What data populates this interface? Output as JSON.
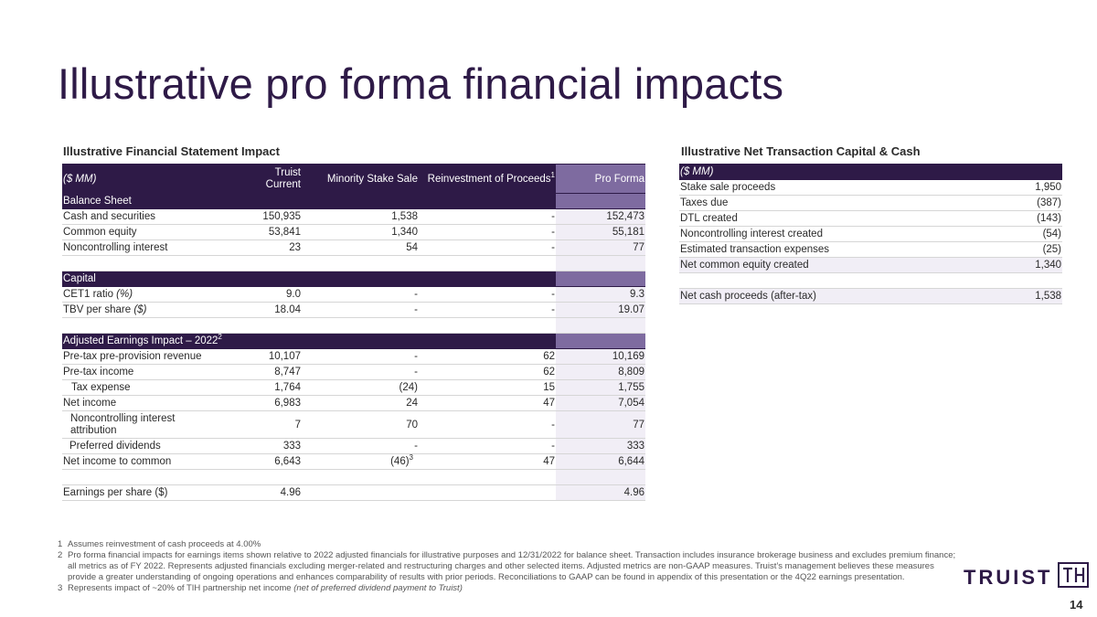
{
  "title": "Illustrative pro forma financial impacts",
  "left": {
    "heading": "Illustrative Financial Statement Impact",
    "columns": {
      "units": "($ MM)",
      "truist_current_line1": "Truist",
      "truist_current_line2": "Current",
      "minority": "Minority Stake Sale",
      "reinvestment": "Reinvestment of Proceeds",
      "reinvestment_sup": "1",
      "pro_forma": "Pro Forma"
    },
    "balance_sheet": {
      "label": "Balance Sheet",
      "rows": [
        {
          "label": "Cash and securities",
          "current": "150,935",
          "minority": "1,538",
          "reinvest": "-",
          "pro_forma": "152,473"
        },
        {
          "label": "Common equity",
          "current": "53,841",
          "minority": "1,340",
          "reinvest": "-",
          "pro_forma": "55,181"
        },
        {
          "label": "Noncontrolling interest",
          "current": "23",
          "minority": "54",
          "reinvest": "-",
          "pro_forma": "77"
        }
      ]
    },
    "capital": {
      "label": "Capital",
      "cet1_label": "CET1 ratio ",
      "cet1_unit": "(%)",
      "cet1": {
        "current": "9.0",
        "minority": "-",
        "reinvest": "-",
        "pro_forma": "9.3"
      },
      "tbv_label": "TBV per share ",
      "tbv_unit": "($)",
      "tbv": {
        "current": "18.04",
        "minority": "-",
        "reinvest": "-",
        "pro_forma": "19.07"
      }
    },
    "earnings": {
      "label": "Adjusted Earnings Impact – 2022",
      "label_sup": "2",
      "rows": [
        {
          "label": "Pre-tax pre-provision revenue",
          "current": "10,107",
          "minority": "-",
          "reinvest": "62",
          "pro_forma": "10,169"
        },
        {
          "label": "Pre-tax income",
          "current": "8,747",
          "minority": "-",
          "reinvest": "62",
          "pro_forma": "8,809"
        },
        {
          "label": "Tax expense",
          "current": "1,764",
          "minority": "(24)",
          "reinvest": "15",
          "pro_forma": "1,755"
        },
        {
          "label": "Net income",
          "current": "6,983",
          "minority": "24",
          "reinvest": "47",
          "pro_forma": "7,054"
        }
      ],
      "nci": {
        "label": "Noncontrolling interest attribution",
        "current": "7",
        "minority": "70",
        "reinvest": "-",
        "pro_forma": "77"
      },
      "preferred": {
        "label": "Preferred dividends",
        "current": "333",
        "minority": "-",
        "reinvest": "-",
        "pro_forma": "333"
      },
      "net_common": {
        "label": "Net income to common",
        "current": "6,643",
        "minority": "(46)",
        "minority_sup": "3",
        "reinvest": "47",
        "pro_forma": "6,644"
      },
      "eps": {
        "label": "Earnings per share ($)",
        "current": "4.96",
        "pro_forma": "4.96"
      }
    }
  },
  "right": {
    "heading": "Illustrative Net Transaction Capital & Cash",
    "units": "($ MM)",
    "rows": [
      {
        "label": "Stake sale proceeds",
        "value": "1,950"
      },
      {
        "label": "Taxes due",
        "value": "(387)"
      },
      {
        "label": "DTL created",
        "value": "(143)"
      },
      {
        "label": "Noncontrolling interest created",
        "value": "(54)"
      },
      {
        "label": "Estimated transaction expenses",
        "value": "(25)"
      }
    ],
    "net_equity": {
      "label": "Net common equity created",
      "value": "1,340"
    },
    "net_cash": {
      "label": "Net cash proceeds (after-tax)",
      "value": "1,538"
    }
  },
  "footnotes": [
    {
      "num": "1",
      "text": "Assumes reinvestment of cash proceeds at 4.00%"
    },
    {
      "num": "2",
      "text": "Pro forma financial impacts for earnings items shown relative to 2022 adjusted financials for illustrative purposes and 12/31/2022 for balance sheet. Transaction includes insurance brokerage business and excludes premium finance; all metrics as of FY 2022. Represents adjusted financials excluding merger-related and restructuring charges and other selected items.  Adjusted metrics are non-GAAP measures. Truist’s management believes these measures provide a greater understanding of ongoing operations and enhances comparability of results with prior periods. Reconciliations to GAAP can be found in appendix of this presentation or the 4Q22 earnings presentation."
    },
    {
      "num": "3",
      "text": "Represents impact of ~20% of TIH partnership net income ",
      "italic": "(net of preferred dividend payment to Truist)"
    }
  ],
  "logo": {
    "text": "TRUIST",
    "mark": "TH"
  },
  "page_number": "14",
  "colors": {
    "brand_purple": "#2e1a47",
    "accent_purple": "#7e6ba0",
    "pro_forma_fill": "#f1eef6"
  }
}
